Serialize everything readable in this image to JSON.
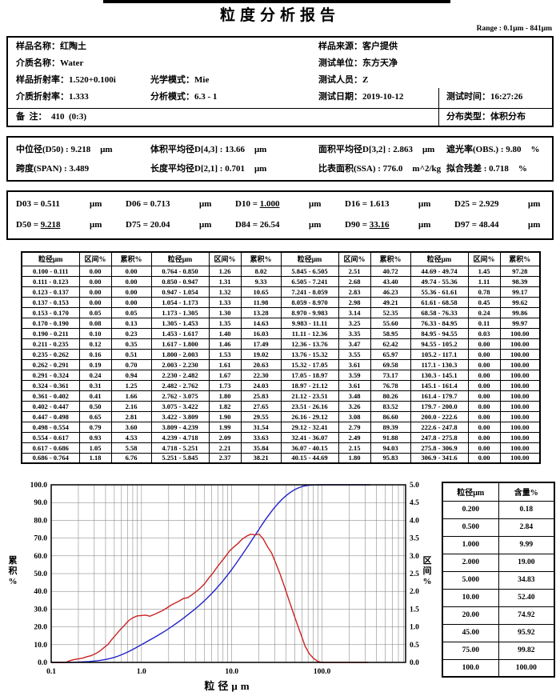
{
  "page": {
    "title": "粒度分析报告",
    "range_label": "Range : 0.1μm - 841μm"
  },
  "info": {
    "sample_name": {
      "label": "样品名称：",
      "value": "红陶土"
    },
    "medium_name": {
      "label": "介质名称：",
      "value": "Water"
    },
    "sample_ri": {
      "label": "样品折射率：",
      "value": "1.520+0.100i"
    },
    "optical_mode": {
      "label": "光学模式：",
      "value": "Mie"
    },
    "medium_ri": {
      "label": "介质折射率：",
      "value": "1.333"
    },
    "analysis_mode": {
      "label": "分析模式：",
      "value": "6.3 - 1"
    },
    "remark": {
      "label": "备  注：  ",
      "value": "410  (0:3)"
    },
    "sample_source": {
      "label": "样品来源：",
      "value": "客户提供"
    },
    "test_unit": {
      "label": "测试单位：",
      "value": "东方天净"
    },
    "tester": {
      "label": "测试人员：",
      "value": "Z"
    },
    "test_date": {
      "label": "测试日期：",
      "value": "2019-10-12"
    },
    "test_time": {
      "label": "测试时间：",
      "value": "16:27:26"
    },
    "dist_type": {
      "label": "分布类型：",
      "value": "体积分布"
    }
  },
  "summary": {
    "median": {
      "label": "中位径(D50) : ",
      "value": "9.218",
      "unit": "μm"
    },
    "d43": {
      "label": "体积平均径D[4,3] : ",
      "value": "13.66",
      "unit": "μm"
    },
    "d32": {
      "label": "面积平均径D[3,2] : ",
      "value": "2.863",
      "unit": "μm"
    },
    "obscuration": {
      "label": "遮光率(OBS.) : ",
      "value": "9.80",
      "unit": "%"
    },
    "span": {
      "label": "跨度(SPAN) : ",
      "value": "3.489",
      "unit": ""
    },
    "d21": {
      "label": "长度平均径D[2,1] : ",
      "value": "0.701",
      "unit": "μm"
    },
    "ssa": {
      "label": "比表面积(SSA) : ",
      "value": "776.0",
      "unit": "m^2/kg"
    },
    "residual": {
      "label": "拟合残差 : ",
      "value": "0.718",
      "unit": "%"
    }
  },
  "d_values": [
    {
      "name": "D03",
      "value": "0.511",
      "unit": "μm",
      "underline": false
    },
    {
      "name": "D06",
      "value": "0.713",
      "unit": "μm",
      "underline": false
    },
    {
      "name": "D10",
      "value": "1.000",
      "unit": "μm",
      "underline": true
    },
    {
      "name": "D16",
      "value": "1.613",
      "unit": "μm",
      "underline": false
    },
    {
      "name": "D25",
      "value": "2.929",
      "unit": "μm",
      "underline": false
    },
    {
      "name": "D50",
      "value": "9.218",
      "unit": "μm",
      "underline": true
    },
    {
      "name": "D75",
      "value": "20.04",
      "unit": "μm",
      "underline": false
    },
    {
      "name": "D84",
      "value": "26.54",
      "unit": "μm",
      "underline": false
    },
    {
      "name": "D90",
      "value": "33.16",
      "unit": "μm",
      "underline": true
    },
    {
      "name": "D97",
      "value": "48.44",
      "unit": "μm",
      "underline": false
    }
  ],
  "dist_table": {
    "headers": [
      "粒径μm",
      "区间%",
      "累积%"
    ],
    "groups": [
      {
        "rows": [
          [
            "0.100 - 0.111",
            "0.00",
            "0.00"
          ],
          [
            "0.111 - 0.123",
            "0.00",
            "0.00"
          ],
          [
            "0.123 - 0.137",
            "0.00",
            "0.00"
          ],
          [
            "0.137 - 0.153",
            "0.00",
            "0.00"
          ],
          [
            "0.153 - 0.170",
            "0.05",
            "0.05"
          ],
          [
            "0.170 - 0.190",
            "0.08",
            "0.13"
          ],
          [
            "0.190 - 0.211",
            "0.10",
            "0.23"
          ],
          [
            "0.211 - 0.235",
            "0.12",
            "0.35"
          ],
          [
            "0.235 - 0.262",
            "0.16",
            "0.51"
          ],
          [
            "0.262 - 0.291",
            "0.19",
            "0.70"
          ],
          [
            "0.291 - 0.324",
            "0.24",
            "0.94"
          ],
          [
            "0.324 - 0.361",
            "0.31",
            "1.25"
          ],
          [
            "0.361 - 0.402",
            "0.41",
            "1.66"
          ],
          [
            "0.402 - 0.447",
            "0.50",
            "2.16"
          ],
          [
            "0.447 - 0.498",
            "0.65",
            "2.81"
          ],
          [
            "0.498 - 0.554",
            "0.79",
            "3.60"
          ],
          [
            "0.554 - 0.617",
            "0.93",
            "4.53"
          ],
          [
            "0.617 - 0.686",
            "1.05",
            "5.58"
          ],
          [
            "0.686 - 0.764",
            "1.18",
            "6.76"
          ]
        ]
      },
      {
        "rows": [
          [
            "0.764 - 0.850",
            "1.26",
            "8.02"
          ],
          [
            "0.850 - 0.947",
            "1.31",
            "9.33"
          ],
          [
            "0.947 - 1.054",
            "1.32",
            "10.65"
          ],
          [
            "1.054 - 1.173",
            "1.33",
            "11.98"
          ],
          [
            "1.173 - 1.305",
            "1.30",
            "13.28"
          ],
          [
            "1.305 - 1.453",
            "1.35",
            "14.63"
          ],
          [
            "1.453 - 1.617",
            "1.40",
            "16.03"
          ],
          [
            "1.617 - 1.800",
            "1.46",
            "17.49"
          ],
          [
            "1.800 - 2.003",
            "1.53",
            "19.02"
          ],
          [
            "2.003 - 2.230",
            "1.61",
            "20.63"
          ],
          [
            "2.230 - 2.482",
            "1.67",
            "22.30"
          ],
          [
            "2.482 - 2.762",
            "1.73",
            "24.03"
          ],
          [
            "2.762 - 3.075",
            "1.80",
            "25.83"
          ],
          [
            "3.075 - 3.422",
            "1.82",
            "27.65"
          ],
          [
            "3.422 - 3.809",
            "1.90",
            "29.55"
          ],
          [
            "3.809 - 4.239",
            "1.99",
            "31.54"
          ],
          [
            "4.239 - 4.718",
            "2.09",
            "33.63"
          ],
          [
            "4.718 - 5.251",
            "2.21",
            "35.84"
          ],
          [
            "5.251 - 5.845",
            "2.37",
            "38.21"
          ]
        ]
      },
      {
        "rows": [
          [
            "5.845 - 6.505",
            "2.51",
            "40.72"
          ],
          [
            "6.505 - 7.241",
            "2.68",
            "43.40"
          ],
          [
            "7.241 - 8.059",
            "2.83",
            "46.23"
          ],
          [
            "8.059 - 8.970",
            "2.98",
            "49.21"
          ],
          [
            "8.970 - 9.983",
            "3.14",
            "52.35"
          ],
          [
            "9.983 - 11.11",
            "3.25",
            "55.60"
          ],
          [
            "11.11 - 12.36",
            "3.35",
            "58.95"
          ],
          [
            "12.36 - 13.76",
            "3.47",
            "62.42"
          ],
          [
            "13.76 - 15.32",
            "3.55",
            "65.97"
          ],
          [
            "15.32 - 17.05",
            "3.61",
            "69.58"
          ],
          [
            "17.05 - 18.97",
            "3.59",
            "73.17"
          ],
          [
            "18.97 - 21.12",
            "3.61",
            "76.78"
          ],
          [
            "21.12 - 23.51",
            "3.48",
            "80.26"
          ],
          [
            "23.51 - 26.16",
            "3.26",
            "83.52"
          ],
          [
            "26.16 - 29.12",
            "3.08",
            "86.60"
          ],
          [
            "29.12 - 32.41",
            "2.79",
            "89.39"
          ],
          [
            "32.41 - 36.07",
            "2.49",
            "91.88"
          ],
          [
            "36.07 - 40.15",
            "2.15",
            "94.03"
          ],
          [
            "40.15 - 44.69",
            "1.80",
            "95.83"
          ]
        ]
      },
      {
        "rows": [
          [
            "44.69 - 49.74",
            "1.45",
            "97.28"
          ],
          [
            "49.74 - 55.36",
            "1.11",
            "98.39"
          ],
          [
            "55.36 - 61.61",
            "0.78",
            "99.17"
          ],
          [
            "61.61 - 68.58",
            "0.45",
            "99.62"
          ],
          [
            "68.58 - 76.33",
            "0.24",
            "99.86"
          ],
          [
            "76.33 - 84.95",
            "0.11",
            "99.97"
          ],
          [
            "84.95 - 94.55",
            "0.03",
            "100.00"
          ],
          [
            "94.55 - 105.2",
            "0.00",
            "100.00"
          ],
          [
            "105.2 - 117.1",
            "0.00",
            "100.00"
          ],
          [
            "117.1 - 130.3",
            "0.00",
            "100.00"
          ],
          [
            "130.3 - 145.1",
            "0.00",
            "100.00"
          ],
          [
            "145.1 - 161.4",
            "0.00",
            "100.00"
          ],
          [
            "161.4 - 179.7",
            "0.00",
            "100.00"
          ],
          [
            "179.7 - 200.0",
            "0.00",
            "100.00"
          ],
          [
            "200.0 - 222.6",
            "0.00",
            "100.00"
          ],
          [
            "222.6 - 247.8",
            "0.00",
            "100.00"
          ],
          [
            "247.8 - 275.8",
            "0.00",
            "100.00"
          ],
          [
            "275.8 - 306.9",
            "0.00",
            "100.00"
          ],
          [
            "306.9 - 341.6",
            "0.00",
            "100.00"
          ]
        ]
      }
    ]
  },
  "content_table": {
    "headers": [
      "粒径μm",
      "含量%"
    ],
    "rows": [
      [
        "0.200",
        "0.18"
      ],
      [
        "0.500",
        "2.84"
      ],
      [
        "1.000",
        "9.99"
      ],
      [
        "2.000",
        "19.00"
      ],
      [
        "5.000",
        "34.83"
      ],
      [
        "10.00",
        "52.40"
      ],
      [
        "20.00",
        "74.92"
      ],
      [
        "45.00",
        "95.92"
      ],
      [
        "75.00",
        "99.82"
      ],
      [
        "100.0",
        "100.00"
      ]
    ]
  },
  "chart_data": {
    "type": "line",
    "x_scale": "log",
    "xlim": [
      0.1,
      841
    ],
    "xlabel": "粒径μm",
    "ylabel_left": "累积%",
    "ylabel_right": "区间%",
    "ylim_left": [
      0,
      100
    ],
    "ylim_right": [
      0,
      5
    ],
    "left_tick_step": 10,
    "right_tick_step": 0.5,
    "grid": true,
    "x_ticks": [
      {
        "v": 0.1,
        "label": "0.1"
      },
      {
        "v": 1,
        "label": "1.0"
      },
      {
        "v": 10,
        "label": "10.0"
      },
      {
        "v": 100,
        "label": "100.0"
      }
    ],
    "bin_edges": [
      0.1,
      0.111,
      0.123,
      0.137,
      0.153,
      0.17,
      0.19,
      0.211,
      0.235,
      0.262,
      0.291,
      0.324,
      0.361,
      0.402,
      0.447,
      0.498,
      0.554,
      0.617,
      0.686,
      0.764,
      0.85,
      0.947,
      1.054,
      1.173,
      1.305,
      1.453,
      1.617,
      1.8,
      2.003,
      2.23,
      2.482,
      2.762,
      3.075,
      3.422,
      3.809,
      4.239,
      4.718,
      5.251,
      5.845,
      6.505,
      7.241,
      8.059,
      8.97,
      9.983,
      11.11,
      12.36,
      13.76,
      15.32,
      17.05,
      18.97,
      21.12,
      23.51,
      26.16,
      29.12,
      32.41,
      36.07,
      40.15,
      44.69,
      49.74,
      55.36,
      61.61,
      68.58,
      76.33,
      84.95,
      94.55,
      105.2,
      117.1,
      130.3,
      145.1,
      161.4,
      179.7,
      200.0,
      222.6,
      247.8,
      275.8,
      306.9,
      341.6
    ],
    "series": [
      {
        "name": "累积%",
        "axis": "left",
        "align": "edge",
        "color": "#2222cc",
        "values": [
          0.0,
          0.0,
          0.0,
          0.0,
          0.05,
          0.13,
          0.23,
          0.35,
          0.51,
          0.7,
          0.94,
          1.25,
          1.66,
          2.16,
          2.81,
          3.6,
          4.53,
          5.58,
          6.76,
          8.02,
          9.33,
          10.65,
          11.98,
          13.28,
          14.63,
          16.03,
          17.49,
          19.02,
          20.63,
          22.3,
          24.03,
          25.83,
          27.65,
          29.55,
          31.54,
          33.63,
          35.84,
          38.21,
          40.72,
          43.4,
          46.23,
          49.21,
          52.35,
          55.6,
          58.95,
          62.42,
          65.97,
          69.58,
          73.17,
          76.78,
          80.26,
          83.52,
          86.6,
          89.39,
          91.88,
          94.03,
          95.83,
          97.28,
          98.39,
          99.17,
          99.62,
          99.86,
          99.97,
          100.0,
          100.0,
          100.0,
          100.0,
          100.0,
          100.0,
          100.0,
          100.0,
          100.0,
          100.0,
          100.0,
          100.0,
          100.0
        ]
      },
      {
        "name": "区间%",
        "axis": "right",
        "align": "mid",
        "color": "#cc2222",
        "values": [
          0.0,
          0.0,
          0.0,
          0.0,
          0.05,
          0.08,
          0.1,
          0.12,
          0.16,
          0.19,
          0.24,
          0.31,
          0.41,
          0.5,
          0.65,
          0.79,
          0.93,
          1.05,
          1.18,
          1.26,
          1.31,
          1.32,
          1.33,
          1.3,
          1.35,
          1.4,
          1.46,
          1.53,
          1.61,
          1.67,
          1.73,
          1.8,
          1.82,
          1.9,
          1.99,
          2.09,
          2.21,
          2.37,
          2.51,
          2.68,
          2.83,
          2.98,
          3.14,
          3.25,
          3.35,
          3.47,
          3.55,
          3.61,
          3.59,
          3.61,
          3.48,
          3.26,
          3.08,
          2.79,
          2.49,
          2.15,
          1.8,
          1.45,
          1.11,
          0.78,
          0.45,
          0.24,
          0.11,
          0.03,
          0.0,
          0.0,
          0.0,
          0.0,
          0.0,
          0.0,
          0.0,
          0.0,
          0.0,
          0.0,
          0.0,
          0.0
        ]
      }
    ]
  }
}
